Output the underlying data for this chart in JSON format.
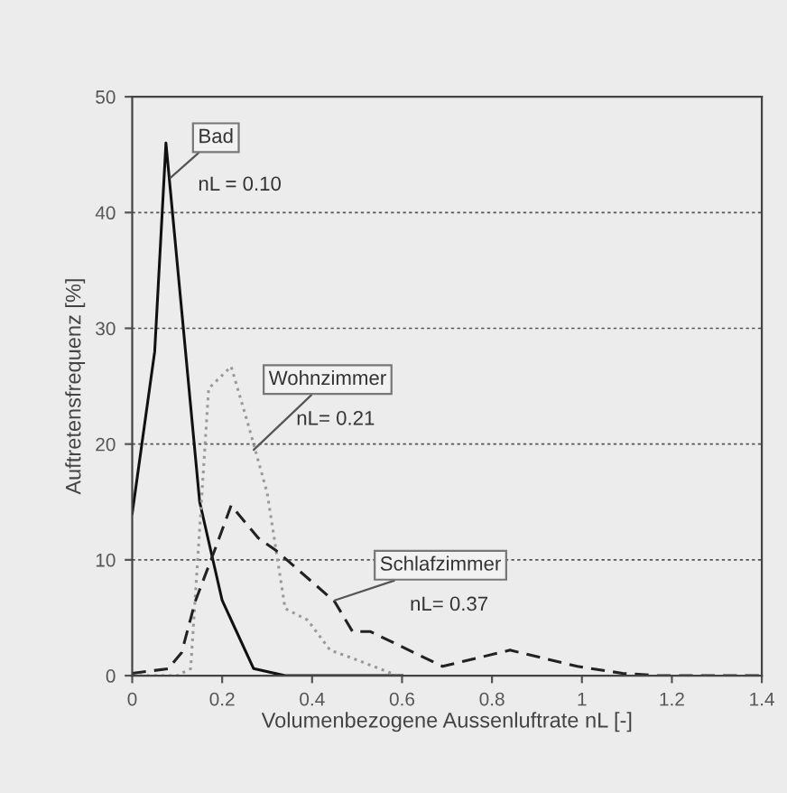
{
  "chart_data": {
    "type": "line",
    "xlabel": "Volumenbezogene Aussenluftrate nL [-]",
    "ylabel": "Auftretensfrequenz [%]",
    "xlim": [
      0,
      1.4
    ],
    "ylim": [
      0,
      50
    ],
    "xticks": [
      0,
      0.2,
      0.4,
      0.6,
      0.8,
      1,
      1.2,
      1.4
    ],
    "yticks": [
      0,
      10,
      20,
      30,
      40,
      50
    ],
    "grid": "y",
    "series": [
      {
        "color": "#111111",
        "line_style": "solid",
        "x": [
          0,
          0.05,
          0.075,
          0.15,
          0.2,
          0.27,
          0.34,
          0.6
        ],
        "values": [
          14,
          28,
          46,
          15,
          6.5,
          0.6,
          0,
          0
        ]
      },
      {
        "color": "#999999",
        "line_style": "dotted",
        "x": [
          0,
          0.1,
          0.13,
          0.17,
          0.22,
          0.26,
          0.3,
          0.34,
          0.39,
          0.44,
          0.49,
          0.59
        ],
        "values": [
          0,
          0,
          0.6,
          24.8,
          26.7,
          21.4,
          15.8,
          5.8,
          4.8,
          2.2,
          1.5,
          0
        ]
      },
      {
        "color": "#222222",
        "line_style": "dashed",
        "x": [
          0,
          0.08,
          0.11,
          0.14,
          0.185,
          0.22,
          0.28,
          0.32,
          0.45,
          0.49,
          0.53,
          0.69,
          0.84,
          0.99,
          1.09,
          1.17,
          1.4
        ],
        "values": [
          0.2,
          0.6,
          2,
          6.4,
          11,
          14.7,
          11.9,
          10.8,
          6.4,
          3.8,
          3.8,
          0.8,
          2.2,
          0.8,
          0.2,
          0,
          0
        ]
      }
    ],
    "annotations": [
      {
        "text": "Bad",
        "x": 0.085,
        "y": 43
      },
      "nL = 0.10",
      {
        "text": "Wohnzimmer",
        "x": 0.27,
        "y": 19.5
      },
      "nL= 0.21",
      {
        "text": "Schlafzimmer",
        "x": 0.45,
        "y": 6.5
      },
      "nL= 0.37"
    ]
  }
}
